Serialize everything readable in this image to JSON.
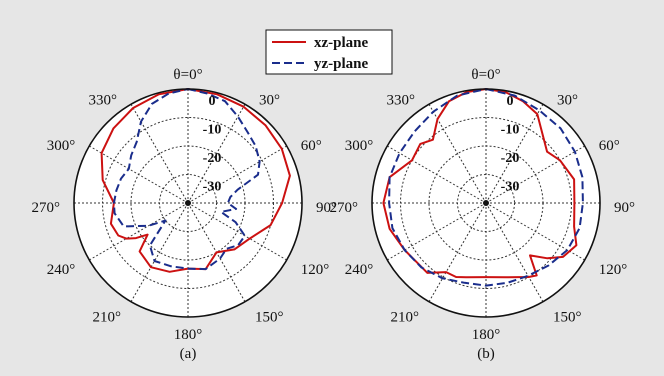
{
  "chart_data": [
    {
      "type": "polar",
      "caption": "(a)",
      "angle_direction": "clockwise",
      "zero_at": "top",
      "rlim": [
        -40,
        0
      ],
      "rings": [
        0,
        -10,
        -20,
        -30
      ],
      "ring_labels": [
        "0",
        "-10",
        "-20",
        "-30"
      ],
      "angle_labels": [
        "θ=0°",
        "30°",
        "60°",
        "90°",
        "120°",
        "150°",
        "180°",
        "210°",
        "240°",
        "270°",
        "300°",
        "330°"
      ],
      "series": [
        {
          "name": "xz-plane",
          "color": "#cc1111",
          "dash": "solid",
          "theta": [
            0,
            15,
            30,
            45,
            60,
            75,
            90,
            105,
            120,
            135,
            150,
            165,
            180,
            195,
            210,
            225,
            232,
            236,
            240,
            245,
            255,
            270,
            285,
            300,
            315,
            330,
            345
          ],
          "r": [
            0,
            -0.5,
            -1,
            -1.5,
            -2,
            -3,
            -7,
            -10,
            -15,
            -17,
            -20,
            -16,
            -17,
            -15,
            -14,
            -16,
            -22,
            -18,
            -15,
            -13,
            -12,
            -14,
            -9,
            -5,
            -3,
            -1.5,
            -0.5
          ]
        },
        {
          "name": "yz-plane",
          "color": "#1a2d8c",
          "dash": "dashed",
          "theta": [
            0,
            10,
            20,
            30,
            40,
            50,
            60,
            68,
            75,
            82,
            90,
            97,
            105,
            112,
            120,
            130,
            140,
            150,
            165,
            180,
            195,
            210,
            222,
            232,
            240,
            250,
            262,
            270,
            280,
            290,
            300,
            310,
            320,
            330,
            340,
            350
          ],
          "r": [
            0,
            -1,
            -2,
            -5,
            -7.5,
            -9,
            -11,
            -13.5,
            -22,
            -25,
            -26,
            -23,
            -28,
            -22,
            -17,
            -17,
            -19,
            -17.5,
            -16,
            -17,
            -17,
            -16.5,
            -20,
            -30,
            -24,
            -16,
            -14,
            -14,
            -14.5,
            -15,
            -16,
            -14,
            -12,
            -7,
            -3,
            -1
          ]
        }
      ]
    },
    {
      "type": "polar",
      "caption": "(b)",
      "angle_direction": "clockwise",
      "zero_at": "top",
      "rlim": [
        -40,
        0
      ],
      "rings": [
        0,
        -10,
        -20,
        -30
      ],
      "ring_labels": [
        "0",
        "-10",
        "-20",
        "-30"
      ],
      "angle_labels": [
        "θ=0°",
        "30°",
        "60°",
        "90°",
        "120°",
        "150°",
        "180°",
        "210°",
        "240°",
        "270°",
        "300°",
        "330°"
      ],
      "series": [
        {
          "name": "xz-plane",
          "color": "#cc1111",
          "dash": "solid",
          "theta": [
            0,
            10,
            20,
            30,
            40,
            50,
            60,
            75,
            90,
            105,
            115,
            125,
            132,
            140,
            145,
            150,
            165,
            180,
            195,
            202,
            210,
            220,
            230,
            240,
            255,
            270,
            285,
            300,
            312,
            320,
            330,
            340,
            350
          ],
          "r": [
            0,
            -0.5,
            -2,
            -4,
            -9,
            -12,
            -10,
            -8,
            -9,
            -8,
            -5,
            -7,
            -11,
            -16,
            -9,
            -10,
            -13,
            -14,
            -13,
            -12,
            -12,
            -8,
            -8,
            -7,
            -5,
            -4,
            -5,
            -10,
            -9,
            -11,
            -6,
            -2,
            -0.5
          ]
        },
        {
          "name": "yz-plane",
          "color": "#1a2d8c",
          "dash": "dashed",
          "theta": [
            0,
            15,
            30,
            45,
            60,
            75,
            90,
            105,
            120,
            135,
            150,
            165,
            180,
            195,
            210,
            225,
            240,
            255,
            270,
            285,
            300,
            315,
            330,
            345
          ],
          "r": [
            0,
            -1,
            -2.5,
            -3,
            -4,
            -5,
            -6,
            -6,
            -7,
            -9,
            -10.5,
            -11,
            -11,
            -11,
            -9.5,
            -8,
            -7,
            -6,
            -6,
            -5,
            -5,
            -4.5,
            -3,
            -1
          ]
        }
      ]
    }
  ],
  "legend": {
    "placement": "top-center",
    "entries": [
      {
        "label": "xz-plane",
        "color": "#cc1111",
        "dash": "solid"
      },
      {
        "label": "yz-plane",
        "color": "#1a2d8c",
        "dash": "dashed"
      }
    ]
  }
}
